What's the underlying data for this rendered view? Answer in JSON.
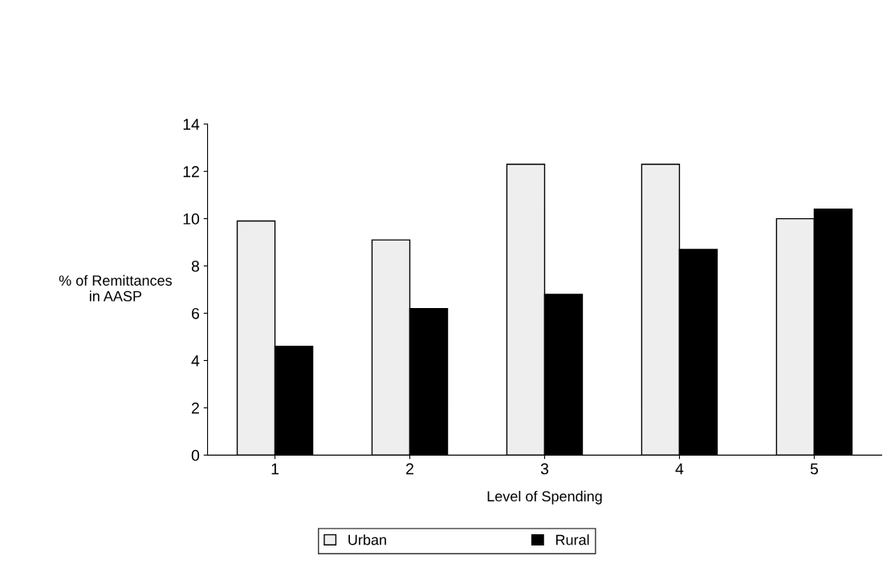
{
  "chart_data": {
    "type": "bar",
    "xlabel": "Level of Spending",
    "ylabel": "% of Remittances\nin AASP",
    "categories": [
      "1",
      "2",
      "3",
      "4",
      "5"
    ],
    "series": [
      {
        "name": "Urban",
        "color": "#eeeeee",
        "values": [
          9.9,
          9.1,
          12.3,
          12.3,
          10.0
        ]
      },
      {
        "name": "Rural",
        "color": "#000000",
        "values": [
          4.6,
          6.2,
          6.8,
          8.7,
          10.4
        ]
      }
    ],
    "ylim": [
      0,
      14
    ],
    "yticks": [
      0,
      2,
      4,
      6,
      8,
      10,
      12,
      14
    ],
    "grid": false,
    "legend": "bottom"
  }
}
